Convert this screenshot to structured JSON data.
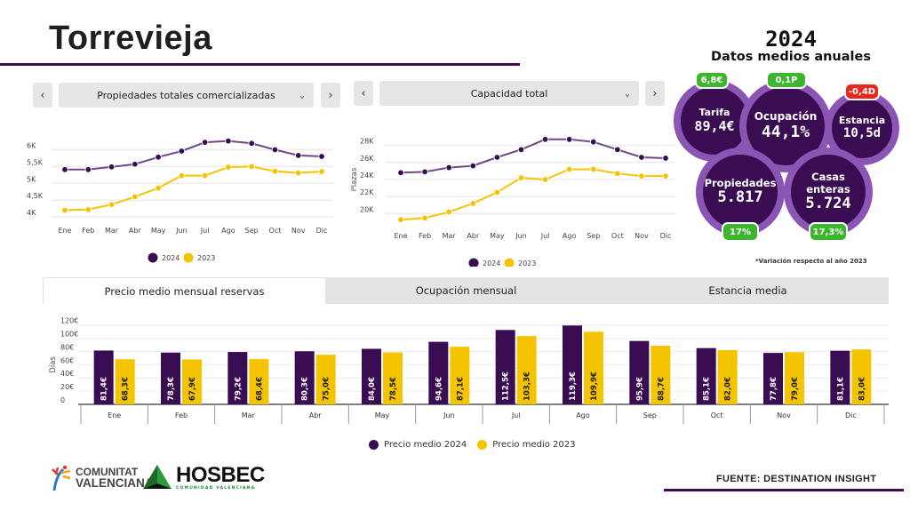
{
  "header": {
    "title": "Torrevieja"
  },
  "colors": {
    "series_2024": "#3a0c52",
    "series_2023": "#f5c400",
    "bubble_ring": "#8a55b3",
    "positive": "#3db52e",
    "negative": "#e52a1d",
    "accent_line": "#3b0a52"
  },
  "left_selector": {
    "prev_icon": "‹",
    "label": "Propiedades totales comercializadas",
    "chevron": "⌄",
    "next_icon": "›"
  },
  "right_selector": {
    "prev_icon": "‹",
    "label": "Capacidad total",
    "chevron": "⌄",
    "next_icon": "›"
  },
  "kpis": {
    "year": "2024",
    "subtitle": "Datos medios anuales",
    "items": [
      {
        "label": "Tarifa",
        "value": "89,4€",
        "variation": "6,8€",
        "trend": "positive"
      },
      {
        "label": "Ocupación",
        "value": "44,1%",
        "variation": "0,1P",
        "trend": "positive"
      },
      {
        "label": "Estancia",
        "value": "10,5d",
        "variation": "-0,4D",
        "trend": "negative"
      },
      {
        "label": "Propiedades",
        "value": "5.817",
        "variation": "17%",
        "trend": "positive"
      },
      {
        "label": "Casas enteras",
        "value": "5.724",
        "variation": "17,3%",
        "trend": "positive"
      }
    ],
    "footnote": "*Variación respecto al año 2023"
  },
  "tabs": [
    {
      "label": "Precio medio mensual reservas",
      "active": true
    },
    {
      "label": "Ocupación mensual",
      "active": false
    },
    {
      "label": "Estancia media",
      "active": false
    }
  ],
  "footer": {
    "logo1_line1": "COMUNITAT",
    "logo1_line2": "VALENCIANA",
    "logo2_name": "HOSBEC",
    "logo2_sub": "COMUNIDAD VALENCIANA",
    "source": "FUENTE:  DESTINATION INSIGHT"
  },
  "chart_data": [
    {
      "type": "line",
      "title": "Propiedades totales comercializadas",
      "xlabel": "",
      "ylabel": "",
      "categories": [
        "Ene",
        "Feb",
        "Mar",
        "Abr",
        "May",
        "Jun",
        "Jul",
        "Ago",
        "Sep",
        "Oct",
        "Nov",
        "Dic"
      ],
      "yticks": [
        4000,
        4500,
        5000,
        5500,
        6000
      ],
      "ytick_labels": [
        "4K",
        "4,5K",
        "5K",
        "5,5K",
        "6K"
      ],
      "ylim": [
        3950,
        6330
      ],
      "grid": true,
      "legend": "bottom",
      "series": [
        {
          "name": "2024",
          "values": [
            5410,
            5410,
            5490,
            5570,
            5780,
            5960,
            6220,
            6260,
            6190,
            6000,
            5830,
            5800
          ]
        },
        {
          "name": "2023",
          "values": [
            4200,
            4220,
            4370,
            4600,
            4860,
            5230,
            5230,
            5480,
            5500,
            5360,
            5310,
            5350
          ]
        }
      ]
    },
    {
      "type": "line",
      "title": "Capacidad total",
      "xlabel": "",
      "ylabel": "Plazas",
      "categories": [
        "Ene",
        "Feb",
        "Mar",
        "Abr",
        "May",
        "Jun",
        "Jul",
        "Ago",
        "Sep",
        "Oct",
        "Nov",
        "Dic"
      ],
      "yticks": [
        20000,
        22000,
        24000,
        26000,
        28000
      ],
      "ytick_labels": [
        "20K",
        "22K",
        "24K",
        "26K",
        "28K"
      ],
      "ylim": [
        18800,
        29200
      ],
      "grid": true,
      "legend": "bottom",
      "series": [
        {
          "name": "2024",
          "values": [
            24800,
            24900,
            25400,
            25600,
            26600,
            27500,
            28700,
            28700,
            28400,
            27500,
            26600,
            26500
          ]
        },
        {
          "name": "2023",
          "values": [
            19300,
            19500,
            20200,
            21200,
            22500,
            24200,
            24000,
            25200,
            25200,
            24700,
            24400,
            24400
          ]
        }
      ]
    },
    {
      "type": "bar",
      "title": "Precio medio mensual reservas",
      "xlabel": "",
      "ylabel": "Días",
      "categories": [
        "Ene",
        "Feb",
        "Mar",
        "Abr",
        "May",
        "Jun",
        "Jul",
        "Ago",
        "Sep",
        "Oct",
        "Nov",
        "Dic"
      ],
      "yticks": [
        0,
        20,
        40,
        60,
        80,
        100,
        120
      ],
      "ytick_labels": [
        "0",
        "20€",
        "40€",
        "60€",
        "80€",
        "100€",
        "120€"
      ],
      "ylim": [
        0,
        125
      ],
      "grid": true,
      "legend": "bottom",
      "series": [
        {
          "name": "Precio medio 2024",
          "values": [
            81.4,
            78.3,
            79.2,
            80.3,
            84.0,
            94.6,
            112.5,
            119.3,
            95.9,
            85.1,
            77.8,
            81.1
          ],
          "labels": [
            "81,4€",
            "78,3€",
            "79,2€",
            "80,3€",
            "84,0€",
            "94,6€",
            "112,5€",
            "119,3€",
            "95,9€",
            "85,1€",
            "77,8€",
            "81,1€"
          ]
        },
        {
          "name": "Precio medio 2023",
          "values": [
            68.3,
            67.9,
            68.4,
            75.0,
            78.5,
            87.1,
            103.3,
            109.9,
            88.7,
            82.0,
            79.0,
            83.0
          ],
          "labels": [
            "68,3€",
            "67,9€",
            "68,4€",
            "75,0€",
            "78,5€",
            "87,1€",
            "103,3€",
            "109,9€",
            "88,7€",
            "82,0€",
            "79,0€",
            "83,0€"
          ]
        }
      ]
    }
  ]
}
